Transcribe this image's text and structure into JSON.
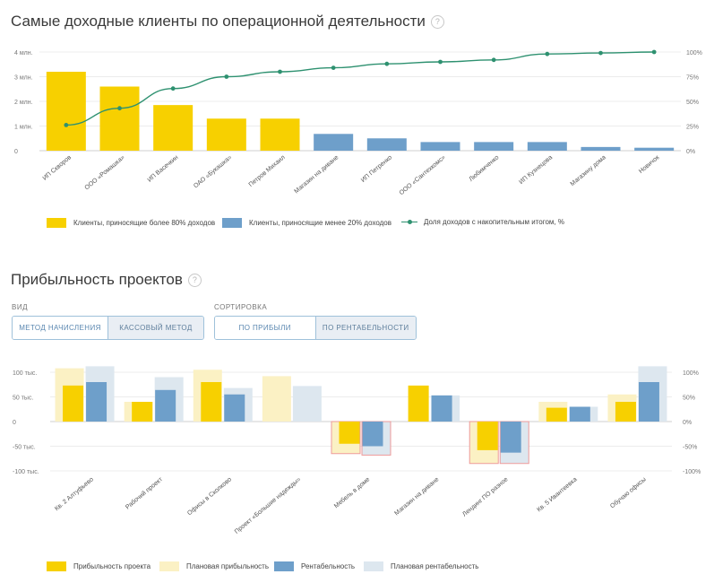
{
  "section1": {
    "title": "Самые доходные клиенты по операционной деятельности",
    "help": "?"
  },
  "section2": {
    "title": "Прибыльность проектов",
    "help": "?",
    "view_label": "ВИД",
    "view_options": [
      "МЕТОД НАЧИСЛЕНИЯ",
      "КАССОВЫЙ МЕТОД"
    ],
    "view_selected": "КАССОВЫЙ МЕТОД",
    "sort_label": "СОРТИРОВКА",
    "sort_options": [
      "ПО ПРИБЫЛИ",
      "ПО РЕНТАБЕЛЬНОСТИ"
    ],
    "sort_selected": "ПО РЕНТАБЕЛЬНОСТИ"
  },
  "colors": {
    "yellow": "#f7d000",
    "blue": "#6e9fca",
    "light_yellow": "#fbf1c4",
    "light_blue": "#dde7ef",
    "green": "#2e9170",
    "grid": "#ececec"
  },
  "chart_data": [
    {
      "type": "bar",
      "categories": [
        "ИП Скворов",
        "ООО «Ромашка»",
        "ИП Васечкин",
        "ОАО «Букашка»",
        "Петров Михаил",
        "Магазин на диване",
        "ИП Петренко",
        "ООО «Сантехкомс»",
        "Любимченко",
        "ИП Кузнецова",
        "Магазину дома",
        "Новичок"
      ],
      "series": [
        {
          "name": "Клиенты, приносящие более 80% доходов",
          "kind": "bar",
          "color": "#f7d000",
          "values": [
            3.2,
            2.6,
            1.85,
            1.3,
            1.3,
            0,
            0,
            0,
            0,
            0,
            0,
            0
          ]
        },
        {
          "name": "Клиенты, приносящие менее 20% доходов",
          "kind": "bar",
          "color": "#6e9fca",
          "values": [
            0,
            0,
            0,
            0,
            0,
            0.68,
            0.5,
            0.35,
            0.35,
            0.35,
            0.15,
            0.12
          ]
        },
        {
          "name": "Доля доходов с накопительным итогом, %",
          "kind": "line",
          "axis": "right",
          "color": "#2e9170",
          "values": [
            26,
            43,
            63,
            75,
            80,
            84,
            88,
            90,
            92,
            98,
            99,
            100
          ]
        }
      ],
      "ylim": [
        0,
        4
      ],
      "y_ticks": [
        "4 млн.",
        "3 млн.",
        "2 млн.",
        "1 млн.",
        "0"
      ],
      "y2lim": [
        0,
        100
      ],
      "y2_ticks": [
        "100%",
        "75%",
        "50%",
        "25%",
        "0%"
      ],
      "legend": "bottom-left"
    },
    {
      "type": "bar",
      "categories": [
        "Кв. 2 Алтуфьево",
        "Рабочий проект",
        "Офисы в Сколково",
        "Проект «Большие надежды»",
        "Мебель в доме",
        "Магазин на диване",
        "Лендинг ПО разное",
        "Кв. 5 Ивантеевка",
        "Обучаю офисы"
      ],
      "series": [
        {
          "name": "Прибыльность проекта",
          "color": "#f7d000",
          "values": [
            73,
            40,
            80,
            null,
            -45,
            73,
            -58,
            28,
            40
          ]
        },
        {
          "name": "Плановая прибыльность",
          "color": "#fbf1c4",
          "values": [
            108,
            40,
            105,
            92,
            -65,
            null,
            -85,
            40,
            55
          ]
        },
        {
          "name": "Рентабельность",
          "color": "#6e9fca",
          "axis": "right",
          "values": [
            80,
            64,
            55,
            null,
            -50,
            53,
            -63,
            30,
            80
          ]
        },
        {
          "name": "Плановая рентабельность",
          "color": "#dde7ef",
          "axis": "right",
          "values": [
            112,
            90,
            68,
            72,
            -68,
            53,
            -85,
            30,
            112
          ]
        }
      ],
      "ylim": [
        -100,
        100
      ],
      "y_ticks": [
        "100 тыс.",
        "50 тыс.",
        "0",
        "-50 тыс.",
        "-100 тыс."
      ],
      "y2lim": [
        -100,
        100
      ],
      "y2_ticks": [
        "100%",
        "50%",
        "0%",
        "-50%",
        "-100%"
      ],
      "legend": "bottom-left"
    }
  ]
}
